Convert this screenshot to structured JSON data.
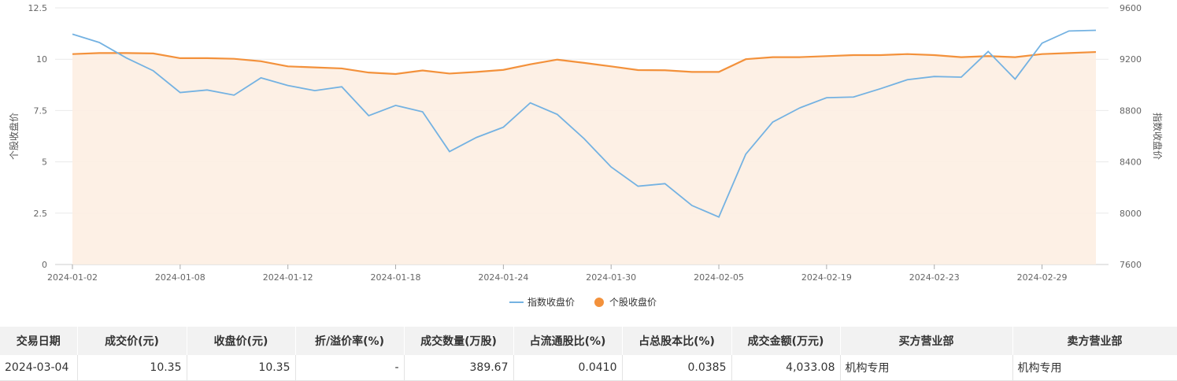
{
  "chart_data": {
    "type": "line",
    "x": [
      "2024-01-02",
      "2024-01-03",
      "2024-01-04",
      "2024-01-05",
      "2024-01-08",
      "2024-01-09",
      "2024-01-10",
      "2024-01-11",
      "2024-01-12",
      "2024-01-15",
      "2024-01-16",
      "2024-01-17",
      "2024-01-18",
      "2024-01-19",
      "2024-01-22",
      "2024-01-23",
      "2024-01-24",
      "2024-01-25",
      "2024-01-26",
      "2024-01-29",
      "2024-01-30",
      "2024-01-31",
      "2024-02-01",
      "2024-02-02",
      "2024-02-05",
      "2024-02-06",
      "2024-02-07",
      "2024-02-08",
      "2024-02-19",
      "2024-02-20",
      "2024-02-21",
      "2024-02-22",
      "2024-02-23",
      "2024-02-26",
      "2024-02-27",
      "2024-02-28",
      "2024-02-29",
      "2024-03-01",
      "2024-03-04"
    ],
    "x_tick_labels": [
      "2024-01-02",
      "2024-01-08",
      "2024-01-12",
      "2024-01-18",
      "2024-01-24",
      "2024-01-30",
      "2024-02-05",
      "2024-02-19",
      "2024-02-23",
      "2024-02-29"
    ],
    "series": [
      {
        "name": "指数收盘价",
        "axis": "right",
        "color": "#74b2e2",
        "values": [
          9395,
          9330,
          9210,
          9110,
          8940,
          8960,
          8920,
          9055,
          8995,
          8955,
          8985,
          8760,
          8840,
          8790,
          8480,
          8590,
          8670,
          8860,
          8770,
          8580,
          8360,
          8210,
          8230,
          8060,
          7970,
          8460,
          8710,
          8820,
          8900,
          8905,
          8970,
          9040,
          9065,
          9060,
          9260,
          9045,
          9325,
          9420,
          9425
        ]
      },
      {
        "name": "个股收盘价",
        "axis": "left",
        "color": "#f3913b",
        "area": true,
        "values": [
          10.25,
          10.3,
          10.3,
          10.28,
          10.05,
          10.05,
          10.02,
          9.9,
          9.65,
          9.6,
          9.55,
          9.35,
          9.28,
          9.45,
          9.3,
          9.38,
          9.48,
          9.75,
          9.98,
          9.82,
          9.65,
          9.47,
          9.46,
          9.38,
          9.38,
          10.0,
          10.1,
          10.1,
          10.15,
          10.2,
          10.2,
          10.25,
          10.2,
          10.1,
          10.15,
          10.1,
          10.25,
          10.3,
          10.35
        ]
      }
    ],
    "y_left": {
      "title": "个股收盘价",
      "ticks": [
        "0",
        "2.5",
        "5",
        "7.5",
        "10",
        "12.5"
      ],
      "range": [
        0,
        12.5
      ]
    },
    "y_right": {
      "title": "指数收盘价",
      "ticks": [
        "7600",
        "8000",
        "8400",
        "8800",
        "9200",
        "9600"
      ],
      "range": [
        7600,
        9600
      ]
    },
    "legend": {
      "placement": "bottom-center",
      "items": [
        "指数收盘价",
        "个股收盘价"
      ]
    },
    "grid": true
  },
  "table": {
    "headers": [
      "交易日期",
      "成交价(元)",
      "收盘价(元)",
      "折/溢价率(%)",
      "成交数量(万股)",
      "占流通股比(%)",
      "占总股本比(%)",
      "成交金额(万元)",
      "买方营业部",
      "卖方营业部"
    ],
    "rows": [
      [
        "2024-03-04",
        "10.35",
        "10.35",
        "-",
        "389.67",
        "0.0410",
        "0.0385",
        "4,033.08",
        "机构专用",
        "机构专用"
      ]
    ]
  }
}
